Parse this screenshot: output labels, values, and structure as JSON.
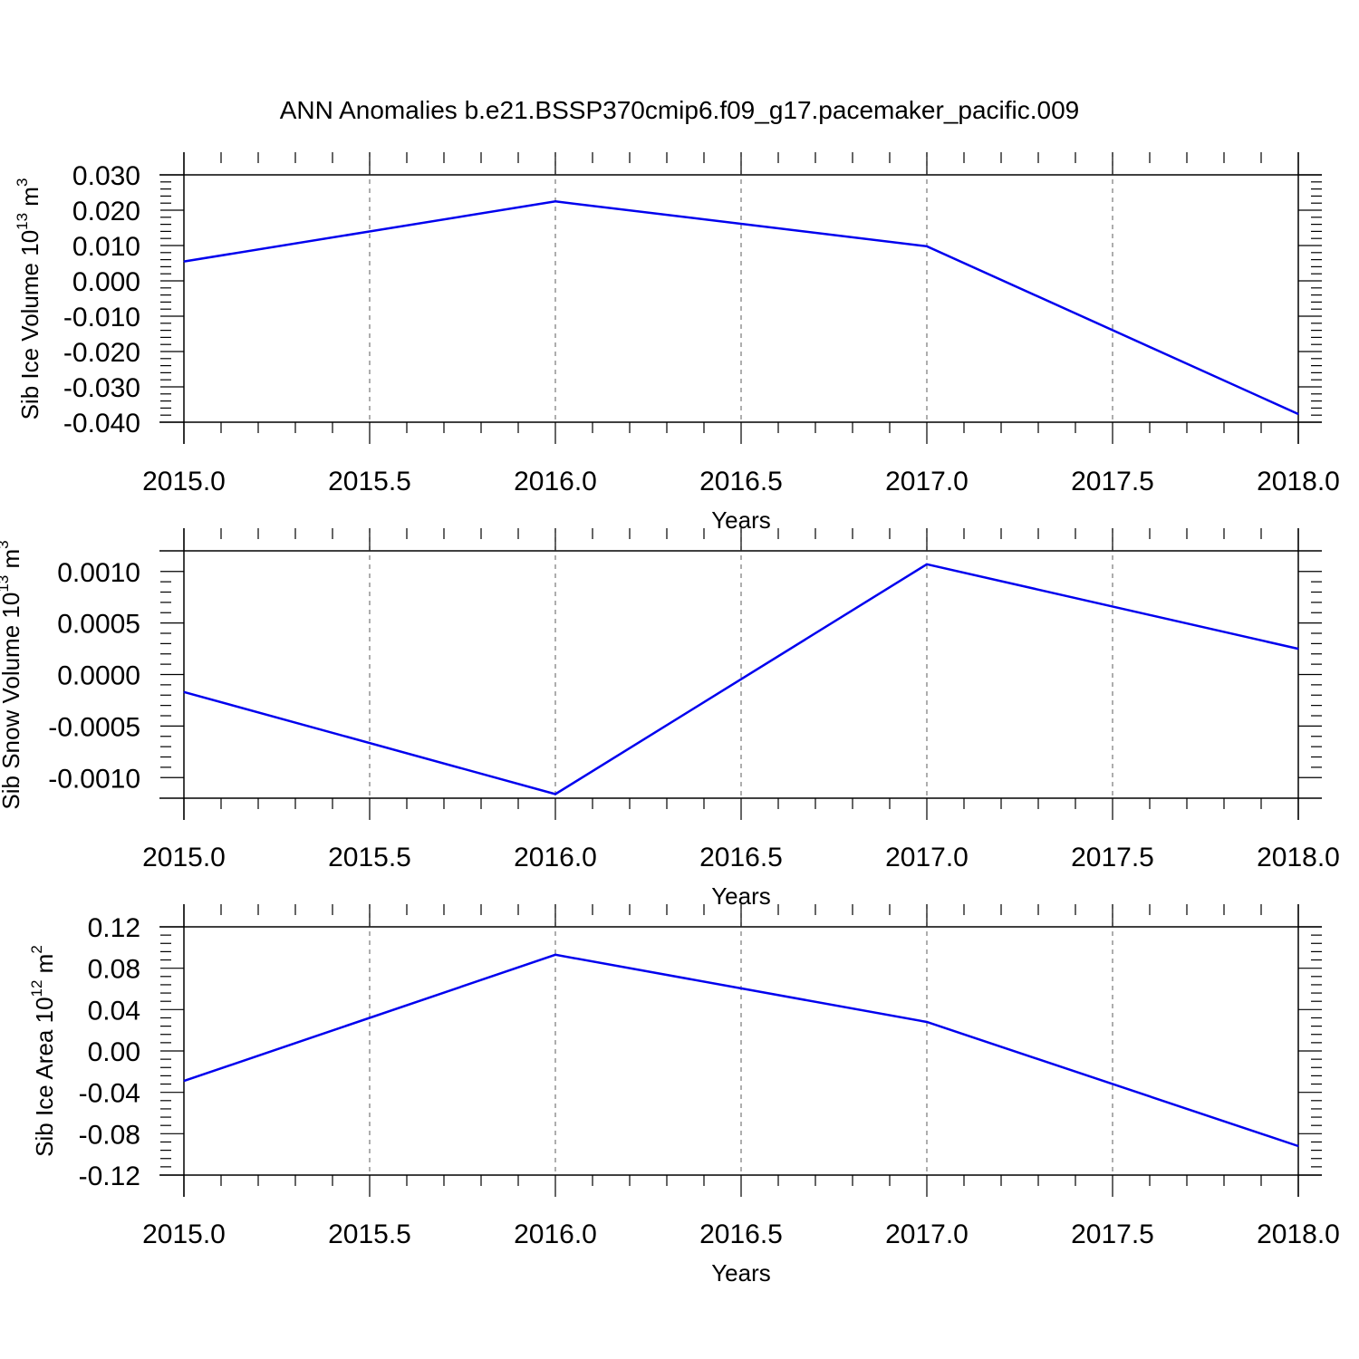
{
  "title": "ANN Anomalies b.e21.BSSP370cmip6.f09_g17.pacemaker_pacific.009",
  "chart_data": [
    {
      "type": "line",
      "xlabel": "Years",
      "ylabel": "Sib Ice Volume 10",
      "ylabel_exp": "13",
      "ylabel_unit": " m",
      "ylabel_unit_exp": "3",
      "xlim": [
        2015.0,
        2018.0
      ],
      "ylim": [
        -0.04,
        0.03
      ],
      "xticks": [
        "2015.0",
        "2015.5",
        "2016.0",
        "2016.5",
        "2017.0",
        "2017.5",
        "2018.0"
      ],
      "yticks": [
        "0.030",
        "0.020",
        "0.010",
        "0.000",
        "-0.010",
        "-0.020",
        "-0.030",
        "-0.040"
      ],
      "grid": "vertical dashed",
      "color": "#0000ee",
      "series": [
        {
          "x": [
            2015,
            2016,
            2017,
            2018
          ],
          "values": [
            0.0055,
            0.0225,
            0.0098,
            -0.0377
          ]
        }
      ]
    },
    {
      "type": "line",
      "xlabel": "Years",
      "ylabel": "Sib Snow Volume 10",
      "ylabel_exp": "13",
      "ylabel_unit": " m",
      "ylabel_unit_exp": "3",
      "xlim": [
        2015.0,
        2018.0
      ],
      "ylim": [
        -0.0012,
        0.0012
      ],
      "xticks": [
        "2015.0",
        "2015.5",
        "2016.0",
        "2016.5",
        "2017.0",
        "2017.5",
        "2018.0"
      ],
      "yticks": [
        "0.0010",
        "0.0005",
        "0.0000",
        "-0.0005",
        "-0.0010"
      ],
      "grid": "vertical dashed",
      "color": "#0000ee",
      "series": [
        {
          "x": [
            2015,
            2016,
            2017,
            2018
          ],
          "values": [
            -0.00017,
            -0.00116,
            0.00107,
            0.00025
          ]
        }
      ]
    },
    {
      "type": "line",
      "xlabel": "Years",
      "ylabel": "Sib Ice Area 10",
      "ylabel_exp": "12",
      "ylabel_unit": " m",
      "ylabel_unit_exp": "2",
      "xlim": [
        2015.0,
        2018.0
      ],
      "ylim": [
        -0.12,
        0.12
      ],
      "xticks": [
        "2015.0",
        "2015.5",
        "2016.0",
        "2016.5",
        "2017.0",
        "2017.5",
        "2018.0"
      ],
      "yticks": [
        "0.12",
        "0.08",
        "0.04",
        "0.00",
        "-0.04",
        "-0.08",
        "-0.12"
      ],
      "grid": "vertical dashed",
      "color": "#0000ee",
      "series": [
        {
          "x": [
            2015,
            2016,
            2017,
            2018
          ],
          "values": [
            -0.029,
            0.093,
            0.028,
            -0.092
          ]
        }
      ]
    }
  ]
}
